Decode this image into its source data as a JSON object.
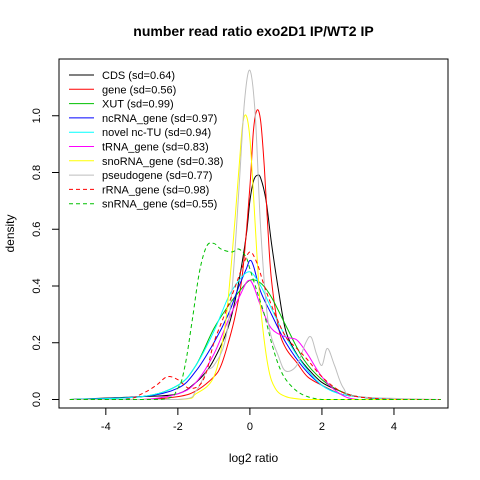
{
  "chart_data": {
    "type": "line",
    "title": "number read ratio exo2D1 IP/WT2 IP",
    "xlabel": "log2 ratio",
    "ylabel": "density",
    "xlim": [
      -5.3,
      5.5
    ],
    "ylim": [
      -0.03,
      1.2
    ],
    "xticks": [
      -4,
      -2,
      0,
      2,
      4
    ],
    "xtick_labels": [
      "-4",
      "-2",
      "0",
      "2",
      "4"
    ],
    "yticks": [
      0.0,
      0.2,
      0.4,
      0.6,
      0.8,
      1.0
    ],
    "ytick_labels": [
      "0.0",
      "0.2",
      "0.4",
      "0.6",
      "0.8",
      "1.0"
    ],
    "grid": false,
    "legend_position": "top-left",
    "series": [
      {
        "name": "CDS (sd=0.64)",
        "color": "#000000",
        "dash": "solid",
        "x": [
          -5.0,
          -3.0,
          -2.0,
          -1.5,
          -1.2,
          -1.0,
          -0.7,
          -0.5,
          -0.3,
          -0.1,
          0.0,
          0.1,
          0.2,
          0.3,
          0.45,
          0.6,
          0.8,
          1.0,
          1.3,
          1.6,
          2.0,
          2.5,
          3.0,
          4.0,
          5.3
        ],
        "y": [
          0.0,
          0.01,
          0.02,
          0.06,
          0.1,
          0.14,
          0.22,
          0.3,
          0.42,
          0.58,
          0.7,
          0.77,
          0.79,
          0.78,
          0.7,
          0.55,
          0.38,
          0.24,
          0.16,
          0.11,
          0.06,
          0.03,
          0.01,
          0.0,
          0.0
        ]
      },
      {
        "name": "gene (sd=0.56)",
        "color": "#ff0000",
        "dash": "solid",
        "x": [
          -5.0,
          -3.0,
          -2.0,
          -1.5,
          -1.0,
          -0.8,
          -0.6,
          -0.4,
          -0.2,
          0.0,
          0.1,
          0.2,
          0.3,
          0.4,
          0.5,
          0.6,
          0.8,
          1.0,
          1.3,
          1.6,
          2.0,
          2.5,
          3.0,
          4.0,
          5.3
        ],
        "y": [
          0.0,
          0.0,
          0.01,
          0.03,
          0.08,
          0.12,
          0.2,
          0.3,
          0.45,
          0.75,
          0.95,
          1.02,
          0.98,
          0.82,
          0.6,
          0.42,
          0.25,
          0.18,
          0.13,
          0.08,
          0.05,
          0.02,
          0.01,
          0.0,
          0.0
        ]
      },
      {
        "name": "XUT (sd=0.99)",
        "color": "#00c000",
        "dash": "solid",
        "x": [
          -5.0,
          -3.0,
          -2.0,
          -1.5,
          -1.0,
          -0.6,
          -0.3,
          0.0,
          0.3,
          0.6,
          1.0,
          1.5,
          2.0,
          2.5,
          3.0,
          4.0,
          5.3
        ],
        "y": [
          0.0,
          0.01,
          0.05,
          0.12,
          0.25,
          0.33,
          0.38,
          0.42,
          0.41,
          0.36,
          0.26,
          0.14,
          0.07,
          0.03,
          0.01,
          0.0,
          0.0
        ]
      },
      {
        "name": "ncRNA_gene (sd=0.97)",
        "color": "#0000ff",
        "dash": "solid",
        "x": [
          -5.0,
          -3.0,
          -2.0,
          -1.5,
          -1.0,
          -0.6,
          -0.3,
          -0.1,
          0.0,
          0.1,
          0.3,
          0.6,
          1.0,
          1.5,
          2.0,
          2.5,
          3.0,
          4.0,
          5.3
        ],
        "y": [
          0.0,
          0.01,
          0.04,
          0.1,
          0.2,
          0.3,
          0.4,
          0.46,
          0.49,
          0.47,
          0.38,
          0.3,
          0.2,
          0.11,
          0.05,
          0.02,
          0.01,
          0.0,
          0.0
        ]
      },
      {
        "name": "novel nc-TU (sd=0.94)",
        "color": "#00ffff",
        "dash": "solid",
        "x": [
          -5.0,
          -3.0,
          -2.0,
          -1.5,
          -1.0,
          -0.6,
          -0.3,
          0.0,
          0.3,
          0.6,
          1.0,
          1.5,
          2.0,
          2.5,
          3.0,
          4.0,
          5.3
        ],
        "y": [
          0.0,
          0.01,
          0.05,
          0.12,
          0.24,
          0.36,
          0.42,
          0.45,
          0.4,
          0.32,
          0.22,
          0.12,
          0.05,
          0.02,
          0.01,
          0.0,
          0.0
        ]
      },
      {
        "name": "tRNA_gene (sd=0.83)",
        "color": "#ff00ff",
        "dash": "solid",
        "x": [
          -5.0,
          -3.0,
          -2.0,
          -1.5,
          -1.0,
          -0.6,
          -0.3,
          0.0,
          0.3,
          0.6,
          1.0,
          1.3,
          1.6,
          2.0,
          2.5,
          3.0,
          4.0,
          5.3
        ],
        "y": [
          0.0,
          0.0,
          0.02,
          0.06,
          0.16,
          0.28,
          0.36,
          0.42,
          0.33,
          0.25,
          0.22,
          0.21,
          0.16,
          0.08,
          0.02,
          0.0,
          0.0,
          0.0
        ]
      },
      {
        "name": "snoRNA_gene (sd=0.38)",
        "color": "#ffff00",
        "dash": "solid",
        "x": [
          -5.0,
          -2.0,
          -1.5,
          -1.0,
          -0.7,
          -0.5,
          -0.3,
          -0.2,
          -0.1,
          0.0,
          0.1,
          0.2,
          0.3,
          0.5,
          0.7,
          1.0,
          1.5,
          2.0,
          5.3
        ],
        "y": [
          0.0,
          0.0,
          0.02,
          0.08,
          0.25,
          0.5,
          0.82,
          0.97,
          1.0,
          0.92,
          0.72,
          0.5,
          0.32,
          0.12,
          0.04,
          0.01,
          0.0,
          0.0,
          0.0
        ]
      },
      {
        "name": "pseudogene (sd=0.77)",
        "color": "#bebebe",
        "dash": "solid",
        "x": [
          -5.0,
          -2.0,
          -1.5,
          -1.2,
          -1.0,
          -0.7,
          -0.5,
          -0.3,
          -0.15,
          0.0,
          0.15,
          0.3,
          0.5,
          0.8,
          1.0,
          1.3,
          1.55,
          1.7,
          1.85,
          2.0,
          2.15,
          2.35,
          2.6,
          3.0,
          5.3
        ],
        "y": [
          0.0,
          0.0,
          0.03,
          0.1,
          0.12,
          0.2,
          0.38,
          0.75,
          1.05,
          1.16,
          1.0,
          0.6,
          0.28,
          0.15,
          0.1,
          0.12,
          0.2,
          0.22,
          0.16,
          0.12,
          0.18,
          0.12,
          0.04,
          0.01,
          0.0
        ]
      },
      {
        "name": "rRNA_gene (sd=0.98)",
        "color": "#ff0000",
        "dash": "dashed",
        "x": [
          -5.0,
          -3.5,
          -3.0,
          -2.6,
          -2.3,
          -2.0,
          -1.7,
          -1.4,
          -1.2,
          -1.0,
          -0.7,
          -0.4,
          -0.2,
          0.0,
          0.2,
          0.4,
          0.7,
          1.0,
          1.3,
          1.6,
          2.0,
          2.5,
          3.0,
          4.0,
          5.3
        ],
        "y": [
          0.0,
          0.0,
          0.02,
          0.05,
          0.08,
          0.07,
          0.04,
          0.05,
          0.1,
          0.2,
          0.3,
          0.4,
          0.47,
          0.52,
          0.48,
          0.4,
          0.3,
          0.22,
          0.18,
          0.14,
          0.08,
          0.03,
          0.01,
          0.0,
          0.0
        ]
      },
      {
        "name": "snRNA_gene (sd=0.55)",
        "color": "#00c000",
        "dash": "dashed",
        "x": [
          -5.0,
          -2.5,
          -2.0,
          -1.8,
          -1.6,
          -1.4,
          -1.2,
          -1.0,
          -0.8,
          -0.5,
          -0.3,
          -0.1,
          0.0,
          0.2,
          0.4,
          0.6,
          0.8,
          1.0,
          1.3,
          1.6,
          2.0,
          2.5,
          5.3
        ],
        "y": [
          0.0,
          0.0,
          0.04,
          0.12,
          0.28,
          0.45,
          0.54,
          0.55,
          0.53,
          0.52,
          0.53,
          0.5,
          0.46,
          0.38,
          0.3,
          0.2,
          0.12,
          0.07,
          0.03,
          0.01,
          0.0,
          0.0,
          0.0
        ]
      }
    ]
  }
}
